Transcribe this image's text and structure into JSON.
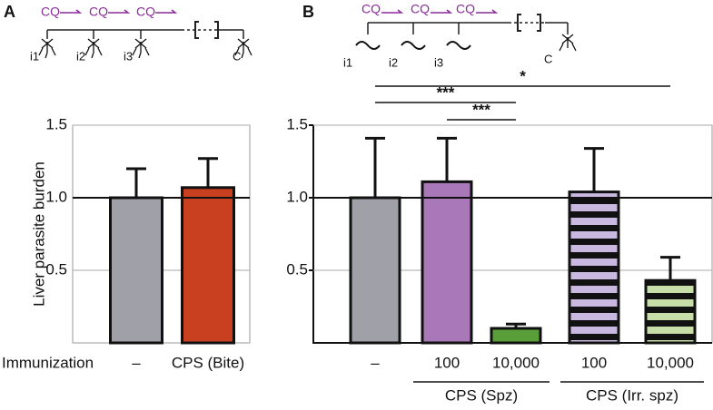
{
  "chart_data": [
    {
      "type": "bar",
      "panel_label": "A",
      "schematic": {
        "drug_labels": [
          "CQ",
          "CQ",
          "CQ"
        ],
        "time_labels": [
          "i1",
          "i2",
          "i3",
          "C"
        ]
      },
      "ylabel": "Liver parasite burden",
      "row_label": "Immunization",
      "categories": [
        "–",
        "CPS (Bite)"
      ],
      "values": [
        1.0,
        1.07
      ],
      "errors": [
        0.2,
        0.2
      ],
      "colors": [
        "#a0a0a8",
        "#c8401f"
      ],
      "stripes": [
        false,
        false
      ],
      "ylim": [
        0,
        1.5
      ],
      "yticks": [
        0.5,
        {
          "value": 1,
          "label": "1.0"
        },
        1.5
      ],
      "reference_line": 1
    },
    {
      "type": "bar",
      "panel_label": "B",
      "schematic": {
        "drug_labels": [
          "CQ",
          "CQ",
          "CQ"
        ],
        "time_labels": [
          "i1",
          "i2",
          "i3",
          "C"
        ]
      },
      "categories": [
        "–",
        "100",
        "10,000",
        "100",
        "10,000"
      ],
      "values": [
        1.0,
        1.11,
        0.1,
        1.04,
        0.43
      ],
      "errors": [
        0.41,
        0.3,
        0.03,
        0.3,
        0.16
      ],
      "colors": [
        "#a0a0a8",
        "#a878b8",
        "#5a9e3a",
        "#c9b8e0",
        "#c8dea8"
      ],
      "stripes": [
        false,
        false,
        false,
        true,
        true
      ],
      "ylim": [
        0,
        1.5
      ],
      "yticks": [
        0.5,
        {
          "value": 1,
          "label": "1.0"
        },
        1.5
      ],
      "reference_line": 1,
      "groups": [
        {
          "label": "CPS (Spz)",
          "start": 1,
          "end": 2
        },
        {
          "label": "CPS (Irr. spz)",
          "start": 3,
          "end": 4
        }
      ],
      "significance": [
        {
          "label": "*",
          "from": 0,
          "to": 4
        },
        {
          "label": "***",
          "from": 0,
          "to": 2
        },
        {
          "label": "***",
          "from": 1,
          "to": 2
        }
      ]
    }
  ]
}
